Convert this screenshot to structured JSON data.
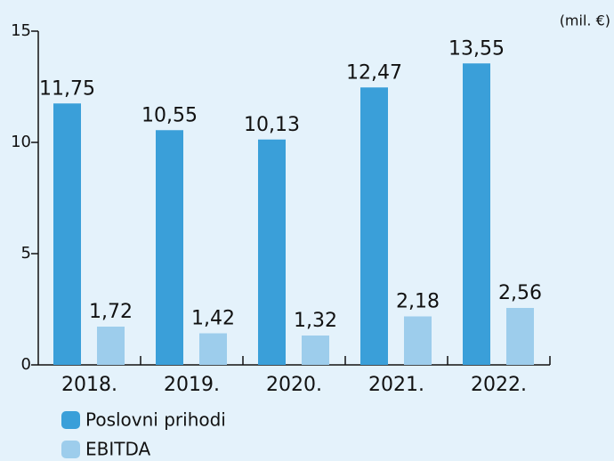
{
  "chart_data": {
    "type": "bar",
    "unit_label": "(mil. €)",
    "categories": [
      "2018.",
      "2019.",
      "2020.",
      "2021.",
      "2022."
    ],
    "series": [
      {
        "name": "Poslovni prihodi",
        "color": "#3a9fd9",
        "values": [
          11.75,
          10.55,
          10.13,
          12.47,
          13.55
        ],
        "value_labels": [
          "11,75",
          "10,55",
          "10,13",
          "12,47",
          "13,55"
        ]
      },
      {
        "name": "EBITDA",
        "color": "#9dcdec",
        "values": [
          1.72,
          1.42,
          1.32,
          2.18,
          2.56
        ],
        "value_labels": [
          "1,72",
          "1,42",
          "1,32",
          "2,18",
          "2,56"
        ]
      }
    ],
    "ylim": [
      0,
      15
    ],
    "yticks": [
      0,
      5,
      10,
      15
    ]
  }
}
